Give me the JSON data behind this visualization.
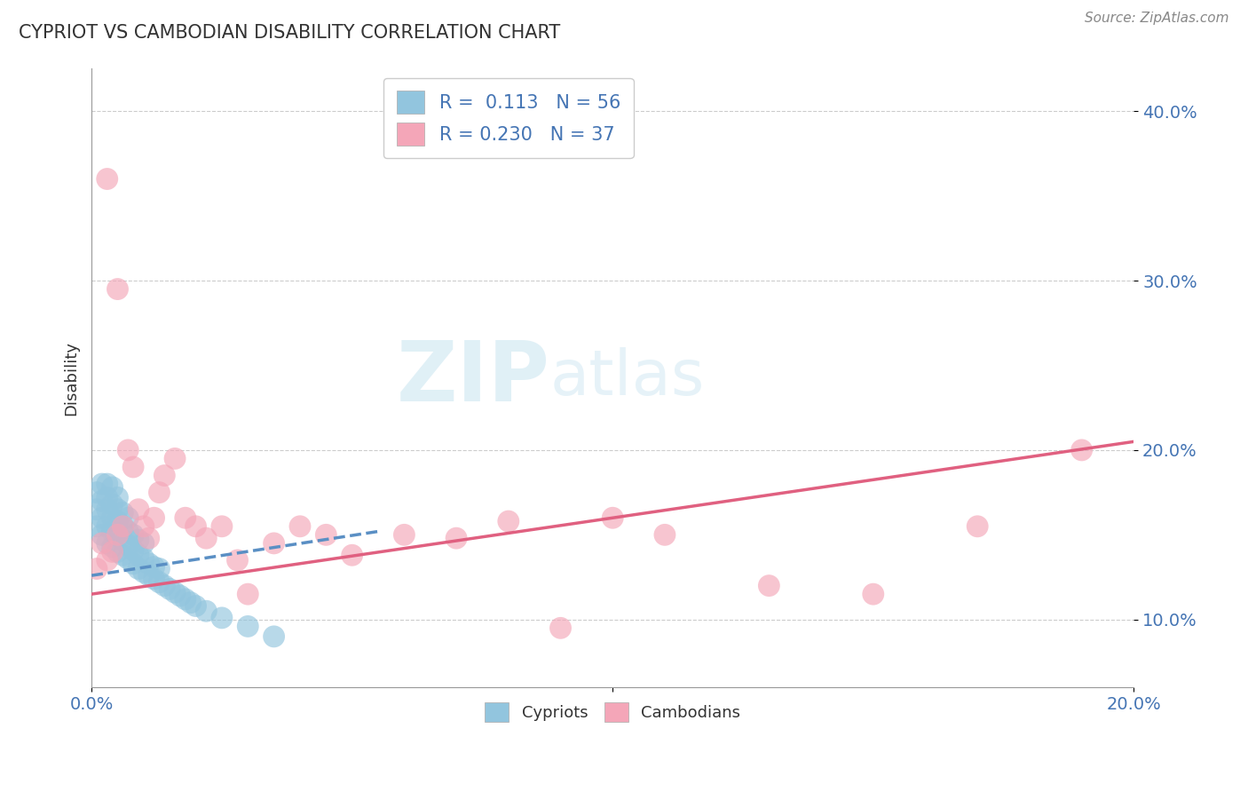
{
  "title": "CYPRIOT VS CAMBODIAN DISABILITY CORRELATION CHART",
  "source": "Source: ZipAtlas.com",
  "xlabel": "",
  "ylabel": "Disability",
  "xlim": [
    0.0,
    0.2
  ],
  "ylim": [
    0.06,
    0.425
  ],
  "xticks": [
    0.0,
    0.1,
    0.2
  ],
  "xticklabels": [
    "0.0%",
    "",
    "20.0%"
  ],
  "yticks": [
    0.1,
    0.2,
    0.3,
    0.4
  ],
  "yticklabels": [
    "10.0%",
    "20.0%",
    "30.0%",
    "40.0%"
  ],
  "cypriot_R": 0.113,
  "cypriot_N": 56,
  "cambodian_R": 0.23,
  "cambodian_N": 37,
  "cypriot_color": "#92c5de",
  "cambodian_color": "#f4a6b8",
  "cypriot_line_color": "#5a8fc4",
  "cambodian_line_color": "#e06080",
  "watermark_zip": "ZIP",
  "watermark_atlas": "atlas",
  "background_color": "#ffffff",
  "cypriot_x": [
    0.001,
    0.001,
    0.001,
    0.002,
    0.002,
    0.002,
    0.002,
    0.003,
    0.003,
    0.003,
    0.003,
    0.003,
    0.004,
    0.004,
    0.004,
    0.004,
    0.004,
    0.005,
    0.005,
    0.005,
    0.005,
    0.005,
    0.006,
    0.006,
    0.006,
    0.006,
    0.007,
    0.007,
    0.007,
    0.007,
    0.008,
    0.008,
    0.008,
    0.009,
    0.009,
    0.009,
    0.01,
    0.01,
    0.01,
    0.011,
    0.011,
    0.012,
    0.012,
    0.013,
    0.013,
    0.014,
    0.015,
    0.016,
    0.017,
    0.018,
    0.019,
    0.02,
    0.022,
    0.025,
    0.03,
    0.035
  ],
  "cypriot_y": [
    0.155,
    0.165,
    0.175,
    0.15,
    0.16,
    0.17,
    0.18,
    0.145,
    0.155,
    0.165,
    0.172,
    0.18,
    0.143,
    0.152,
    0.16,
    0.168,
    0.178,
    0.14,
    0.15,
    0.158,
    0.165,
    0.172,
    0.138,
    0.147,
    0.155,
    0.163,
    0.136,
    0.144,
    0.152,
    0.16,
    0.133,
    0.141,
    0.15,
    0.13,
    0.138,
    0.147,
    0.128,
    0.136,
    0.145,
    0.126,
    0.133,
    0.124,
    0.131,
    0.122,
    0.13,
    0.12,
    0.118,
    0.116,
    0.114,
    0.112,
    0.11,
    0.108,
    0.105,
    0.101,
    0.096,
    0.09
  ],
  "cambodian_x": [
    0.001,
    0.002,
    0.003,
    0.003,
    0.004,
    0.005,
    0.005,
    0.006,
    0.007,
    0.008,
    0.009,
    0.01,
    0.011,
    0.012,
    0.013,
    0.014,
    0.016,
    0.018,
    0.02,
    0.022,
    0.025,
    0.028,
    0.03,
    0.035,
    0.04,
    0.045,
    0.05,
    0.06,
    0.07,
    0.08,
    0.09,
    0.1,
    0.11,
    0.13,
    0.15,
    0.17,
    0.19
  ],
  "cambodian_y": [
    0.13,
    0.145,
    0.135,
    0.36,
    0.14,
    0.15,
    0.295,
    0.155,
    0.2,
    0.19,
    0.165,
    0.155,
    0.148,
    0.16,
    0.175,
    0.185,
    0.195,
    0.16,
    0.155,
    0.148,
    0.155,
    0.135,
    0.115,
    0.145,
    0.155,
    0.15,
    0.138,
    0.15,
    0.148,
    0.158,
    0.095,
    0.16,
    0.15,
    0.12,
    0.115,
    0.155,
    0.2
  ]
}
